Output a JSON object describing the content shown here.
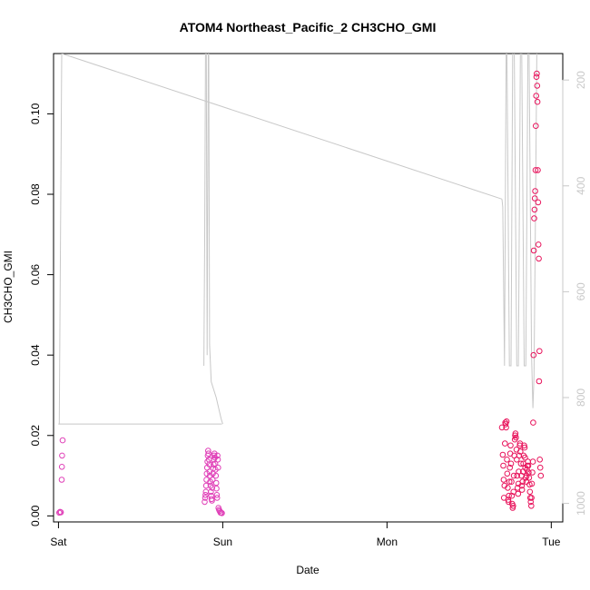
{
  "chart_data": {
    "type": "scatter",
    "title": "ATOM4 Northeast_Pacific_2 CH3CHO_GMI",
    "xlabel": "Date",
    "ylabel": "CH3CHO_GMI",
    "x_unit": "days",
    "xlim": [
      -0.03,
      3.07
    ],
    "ylim": [
      -0.0015,
      0.115
    ],
    "x_ticks": [
      {
        "value": 0,
        "label": "Sat"
      },
      {
        "value": 1,
        "label": "Sun"
      },
      {
        "value": 2,
        "label": "Mon"
      },
      {
        "value": 3,
        "label": "Tue"
      }
    ],
    "y_ticks": [
      {
        "value": 0.0,
        "label": "0.00"
      },
      {
        "value": 0.02,
        "label": "0.02"
      },
      {
        "value": 0.04,
        "label": "0.04"
      },
      {
        "value": 0.06,
        "label": "0.06"
      },
      {
        "value": 0.08,
        "label": "0.08"
      },
      {
        "value": 0.1,
        "label": "0.10"
      }
    ],
    "right_axis": {
      "reversed": true,
      "lim": [
        150,
        1035
      ],
      "ticks": [
        {
          "value": 200,
          "label": "200"
        },
        {
          "value": 400,
          "label": "400"
        },
        {
          "value": 600,
          "label": "600"
        },
        {
          "value": 800,
          "label": "800"
        },
        {
          "value": 1000,
          "label": "1000"
        }
      ]
    },
    "pressure_line": {
      "color": "#c8c8c8",
      "x": [
        -0.005,
        0.005,
        0.02,
        1.0,
        1.005,
        1.01,
        1.015,
        1.05,
        1.08,
        1.1,
        1.12,
        1.13,
        1.135,
        1.14,
        1.145,
        1.15,
        1.155,
        1.16,
        1.17,
        1.2,
        1.6,
        2.72,
        2.73,
        2.735,
        2.74,
        2.745,
        2.75,
        2.76,
        2.77,
        2.775,
        2.78,
        2.79,
        2.8,
        2.805,
        2.81,
        2.82,
        2.83,
        2.835,
        2.84,
        2.85,
        2.86,
        2.865,
        2.87,
        2.88,
        2.89,
        2.895,
        2.9,
        2.905,
        2.91,
        2.915,
        2.92,
        2.925,
        2.93,
        2.935,
        2.94,
        2.945,
        2.95,
        2.96,
        2.97,
        2.98,
        2.99,
        3.0
      ],
      "y": [
        850,
        850,
        150,
        150,
        260,
        520,
        850,
        850,
        850,
        850,
        850,
        850,
        850,
        850,
        850,
        850,
        850,
        850,
        850,
        850,
        850,
        425,
        440,
        600,
        720,
        680,
        420,
        150,
        150,
        300,
        680,
        740,
        740,
        620,
        420,
        150,
        150,
        300,
        680,
        740,
        740,
        620,
        420,
        150,
        150,
        600,
        740,
        720,
        680,
        560,
        420,
        260,
        150,
        200,
        340,
        620,
        740,
        800,
        820,
        840,
        860,
        850
      ],
      "segments": [
        {
          "x": [
            0.0,
            0.01,
            0.02,
            1.0,
            1.0
          ],
          "y": [
            850,
            850,
            150,
            150,
            150
          ]
        },
        {
          "x": [
            0.883,
            0.888,
            0.892,
            0.896,
            0.9,
            0.903
          ],
          "y": [
            740,
            500,
            150,
            150,
            300,
            700
          ]
        },
        {
          "x": [
            0.903,
            0.906,
            0.91,
            0.914,
            0.918,
            0.922,
            0.93,
            0.945,
            0.96,
            0.98,
            1.0
          ],
          "y": [
            700,
            500,
            150,
            150,
            320,
            680,
            760,
            790,
            810,
            830,
            850
          ]
        },
        {
          "x": [
            0.0,
            0.0,
            0.02,
            2.95,
            2.7
          ],
          "y": [
            850,
            850,
            150,
            150,
            150
          ]
        }
      ],
      "path": [
        [
          -0.005,
          850
        ],
        [
          1.0,
          850
        ],
        [
          1.0,
          850
        ]
      ]
    },
    "series": [
      {
        "color": "#e040b8",
        "points": [
          [
            0.005,
            0.0008
          ],
          [
            0.01,
            0.001
          ],
          [
            0.015,
            0.0009
          ],
          [
            0.02,
            0.009
          ],
          [
            0.021,
            0.0122
          ],
          [
            0.022,
            0.015
          ],
          [
            0.025,
            0.0188
          ],
          [
            0.89,
            0.0035
          ],
          [
            0.893,
            0.0045
          ],
          [
            0.895,
            0.0052
          ],
          [
            0.897,
            0.006
          ],
          [
            0.899,
            0.0075
          ],
          [
            0.901,
            0.009
          ],
          [
            0.903,
            0.0105
          ],
          [
            0.905,
            0.012
          ],
          [
            0.907,
            0.0135
          ],
          [
            0.909,
            0.015
          ],
          [
            0.911,
            0.0162
          ],
          [
            0.913,
            0.0155
          ],
          [
            0.916,
            0.014
          ],
          [
            0.918,
            0.0128
          ],
          [
            0.92,
            0.011
          ],
          [
            0.922,
            0.01
          ],
          [
            0.924,
            0.0085
          ],
          [
            0.926,
            0.0075
          ],
          [
            0.928,
            0.006
          ],
          [
            0.93,
            0.005
          ],
          [
            0.932,
            0.0042
          ],
          [
            0.934,
            0.0038
          ],
          [
            0.936,
            0.007
          ],
          [
            0.938,
            0.009
          ],
          [
            0.94,
            0.0105
          ],
          [
            0.942,
            0.0118
          ],
          [
            0.944,
            0.0128
          ],
          [
            0.946,
            0.014
          ],
          [
            0.948,
            0.015
          ],
          [
            0.95,
            0.0155
          ],
          [
            0.952,
            0.0145
          ],
          [
            0.954,
            0.013
          ],
          [
            0.956,
            0.0115
          ],
          [
            0.958,
            0.01
          ],
          [
            0.96,
            0.0082
          ],
          [
            0.962,
            0.0068
          ],
          [
            0.964,
            0.0052
          ],
          [
            0.966,
            0.0045
          ],
          [
            0.968,
            0.015
          ],
          [
            0.97,
            0.014
          ],
          [
            0.972,
            0.012
          ],
          [
            0.974,
            0.002
          ],
          [
            0.978,
            0.0015
          ],
          [
            0.982,
            0.0012
          ],
          [
            0.986,
            0.0008
          ],
          [
            0.99,
            0.0008
          ],
          [
            0.995,
            0.0007
          ]
        ]
      },
      {
        "color": "#e8145c",
        "points": [
          [
            2.7,
            0.022
          ],
          [
            2.705,
            0.0152
          ],
          [
            2.708,
            0.0125
          ],
          [
            2.71,
            0.009
          ],
          [
            2.712,
            0.0045
          ],
          [
            2.715,
            0.0075
          ],
          [
            2.718,
            0.018
          ],
          [
            2.72,
            0.0232
          ],
          [
            2.722,
            0.0228
          ],
          [
            2.725,
            0.022
          ],
          [
            2.728,
            0.0235
          ],
          [
            2.73,
            0.014
          ],
          [
            2.732,
            0.0105
          ],
          [
            2.735,
            0.007
          ],
          [
            2.738,
            0.004
          ],
          [
            2.74,
            0.0035
          ],
          [
            2.742,
            0.005
          ],
          [
            2.745,
            0.0085
          ],
          [
            2.748,
            0.012
          ],
          [
            2.75,
            0.0155
          ],
          [
            2.752,
            0.0175
          ],
          [
            2.755,
            0.013
          ],
          [
            2.758,
            0.0085
          ],
          [
            2.76,
            0.005
          ],
          [
            2.762,
            0.003
          ],
          [
            2.765,
            0.002
          ],
          [
            2.768,
            0.0025
          ],
          [
            2.77,
            0.006
          ],
          [
            2.772,
            0.01
          ],
          [
            2.775,
            0.015
          ],
          [
            2.778,
            0.019
          ],
          [
            2.78,
            0.02
          ],
          [
            2.782,
            0.0205
          ],
          [
            2.785,
            0.0195
          ],
          [
            2.788,
            0.0165
          ],
          [
            2.79,
            0.014
          ],
          [
            2.792,
            0.01
          ],
          [
            2.795,
            0.007
          ],
          [
            2.798,
            0.0055
          ],
          [
            2.8,
            0.008
          ],
          [
            2.802,
            0.011
          ],
          [
            2.805,
            0.015
          ],
          [
            2.808,
            0.0175
          ],
          [
            2.81,
            0.018
          ],
          [
            2.812,
            0.016
          ],
          [
            2.815,
            0.013
          ],
          [
            2.818,
            0.01
          ],
          [
            2.82,
            0.0075
          ],
          [
            2.822,
            0.0065
          ],
          [
            2.825,
            0.0085
          ],
          [
            2.828,
            0.011
          ],
          [
            2.83,
            0.013
          ],
          [
            2.832,
            0.015
          ],
          [
            2.835,
            0.0175
          ],
          [
            2.838,
            0.017
          ],
          [
            2.84,
            0.0145
          ],
          [
            2.842,
            0.012
          ],
          [
            2.845,
            0.0095
          ],
          [
            2.848,
            0.0085
          ],
          [
            2.85,
            0.01
          ],
          [
            2.852,
            0.0115
          ],
          [
            2.855,
            0.0125
          ],
          [
            2.858,
            0.0135
          ],
          [
            2.86,
            0.0125
          ],
          [
            2.862,
            0.0108
          ],
          [
            2.865,
            0.0095
          ],
          [
            2.868,
            0.0078
          ],
          [
            2.87,
            0.006
          ],
          [
            2.872,
            0.0045
          ],
          [
            2.875,
            0.0035
          ],
          [
            2.878,
            0.0025
          ],
          [
            2.88,
            0.0045
          ],
          [
            2.882,
            0.008
          ],
          [
            2.885,
            0.0108
          ],
          [
            2.888,
            0.0135
          ],
          [
            2.89,
            0.0232
          ],
          [
            2.892,
            0.04
          ],
          [
            2.894,
            0.066
          ],
          [
            2.896,
            0.074
          ],
          [
            2.898,
            0.0762
          ],
          [
            2.9,
            0.079
          ],
          [
            2.902,
            0.0808
          ],
          [
            2.904,
            0.086
          ],
          [
            2.906,
            0.097
          ],
          [
            2.908,
            0.1045
          ],
          [
            2.91,
            0.1092
          ],
          [
            2.912,
            0.11
          ],
          [
            2.914,
            0.107
          ],
          [
            2.916,
            0.103
          ],
          [
            2.918,
            0.086
          ],
          [
            2.92,
            0.078
          ],
          [
            2.922,
            0.0675
          ],
          [
            2.924,
            0.064
          ],
          [
            2.926,
            0.0335
          ],
          [
            2.928,
            0.041
          ],
          [
            2.93,
            0.014
          ],
          [
            2.933,
            0.012
          ],
          [
            2.936,
            0.01
          ]
        ]
      }
    ]
  }
}
